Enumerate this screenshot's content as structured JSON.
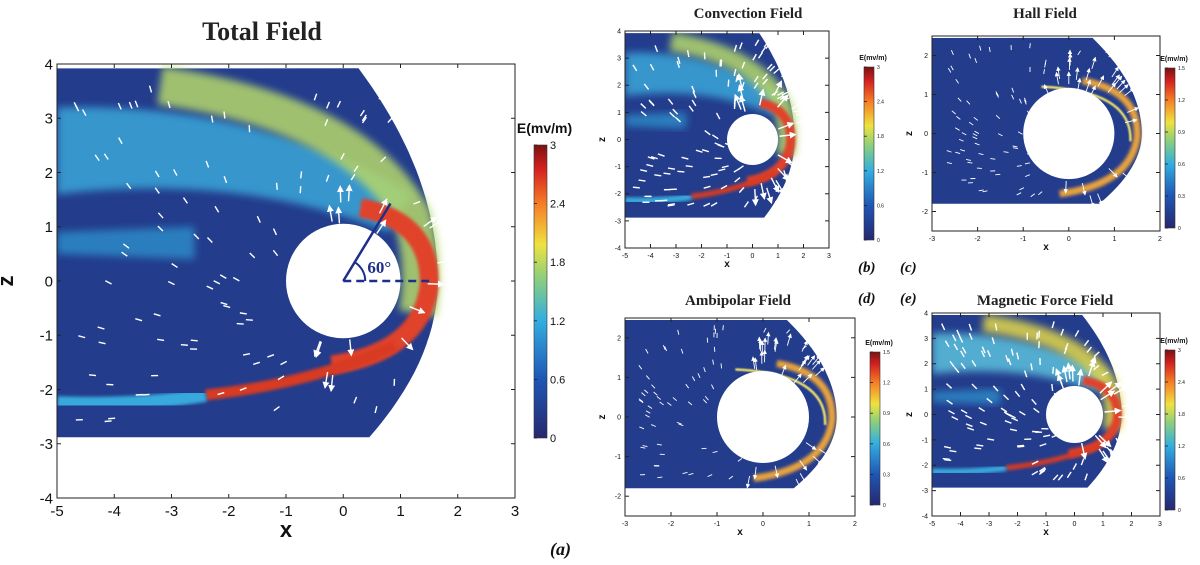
{
  "panel_labels": {
    "a": "(a)",
    "b": "(b)",
    "c": "(c)",
    "d": "(d)",
    "e": "(e)"
  },
  "angle_label": "60°",
  "chart_data": [
    {
      "id": "a",
      "type": "heatmap",
      "title": "Total Field",
      "xlabel": "x",
      "ylabel": "z",
      "xlim": [
        -5,
        3
      ],
      "ylim": [
        -4,
        4
      ],
      "xticks": [
        -5,
        -4,
        -3,
        -2,
        -1,
        0,
        1,
        2,
        3
      ],
      "yticks": [
        -4,
        -3,
        -2,
        -1,
        0,
        1,
        2,
        3,
        4
      ],
      "colorbar": {
        "label": "E(mv/m)",
        "range": [
          0,
          3
        ],
        "ticks": [
          "0",
          "0.6",
          "1.2",
          "1.8",
          "2.4",
          "3"
        ]
      },
      "obstacle": {
        "center": [
          0,
          0
        ],
        "radius": 1
      },
      "cut_angle_deg": 60,
      "vectors": "white arrows"
    },
    {
      "id": "b",
      "type": "heatmap",
      "title": "Convection Field",
      "xlabel": "x",
      "ylabel": "z",
      "xlim": [
        -5,
        3
      ],
      "ylim": [
        -4,
        4
      ],
      "xticks": [
        -5,
        -4,
        -3,
        -2,
        -1,
        0,
        1,
        2,
        3
      ],
      "yticks": [
        -4,
        -3,
        -2,
        -1,
        0,
        1,
        2,
        3,
        4
      ],
      "colorbar": {
        "label": "E(mv/m)",
        "range": [
          0,
          3
        ],
        "ticks": [
          "0",
          "0.6",
          "1.2",
          "1.8",
          "2.4",
          "3"
        ]
      },
      "obstacle": {
        "center": [
          0,
          0
        ],
        "radius": 1
      }
    },
    {
      "id": "c",
      "type": "heatmap",
      "title": "Hall Field",
      "xlabel": "x",
      "ylabel": "z",
      "xlim": [
        -3,
        2
      ],
      "ylim": [
        -2.5,
        2.5
      ],
      "xticks": [
        -3,
        -2,
        -1,
        0,
        1,
        2
      ],
      "yticks": [
        -2,
        -1,
        0,
        1,
        2
      ],
      "colorbar": {
        "label": "E(mv/m)",
        "range": [
          0,
          1.5
        ],
        "ticks": [
          "0",
          "0.3",
          "0.6",
          "0.9",
          "1.2",
          "1.5"
        ]
      },
      "obstacle": {
        "center": [
          0,
          0
        ],
        "radius": 1
      }
    },
    {
      "id": "d",
      "type": "heatmap",
      "title": "Ambipolar Field",
      "xlabel": "x",
      "ylabel": "z",
      "xlim": [
        -3,
        2
      ],
      "ylim": [
        -2.5,
        2.5
      ],
      "xticks": [
        -3,
        -2,
        -1,
        0,
        1,
        2
      ],
      "yticks": [
        -2,
        -1,
        0,
        1,
        2
      ],
      "colorbar": {
        "label": "E(mv/m)",
        "range": [
          0,
          1.5
        ],
        "ticks": [
          "0",
          "0.3",
          "0.6",
          "0.9",
          "1.2",
          "1.5"
        ]
      },
      "obstacle": {
        "center": [
          0,
          0
        ],
        "radius": 1
      }
    },
    {
      "id": "e",
      "type": "heatmap",
      "title": "Magnetic Force Field",
      "xlabel": "x",
      "ylabel": "z",
      "xlim": [
        -5,
        3
      ],
      "ylim": [
        -4,
        4
      ],
      "xticks": [
        -5,
        -4,
        -3,
        -2,
        -1,
        0,
        1,
        2,
        3
      ],
      "yticks": [
        -4,
        -3,
        -2,
        -1,
        0,
        1,
        2,
        3,
        4
      ],
      "colorbar": {
        "label": "E(mv/m)",
        "range": [
          0,
          3
        ],
        "ticks": [
          "0",
          "0.6",
          "1.2",
          "1.8",
          "2.4",
          "3"
        ]
      },
      "obstacle": {
        "center": [
          0,
          0
        ],
        "radius": 1
      }
    }
  ]
}
